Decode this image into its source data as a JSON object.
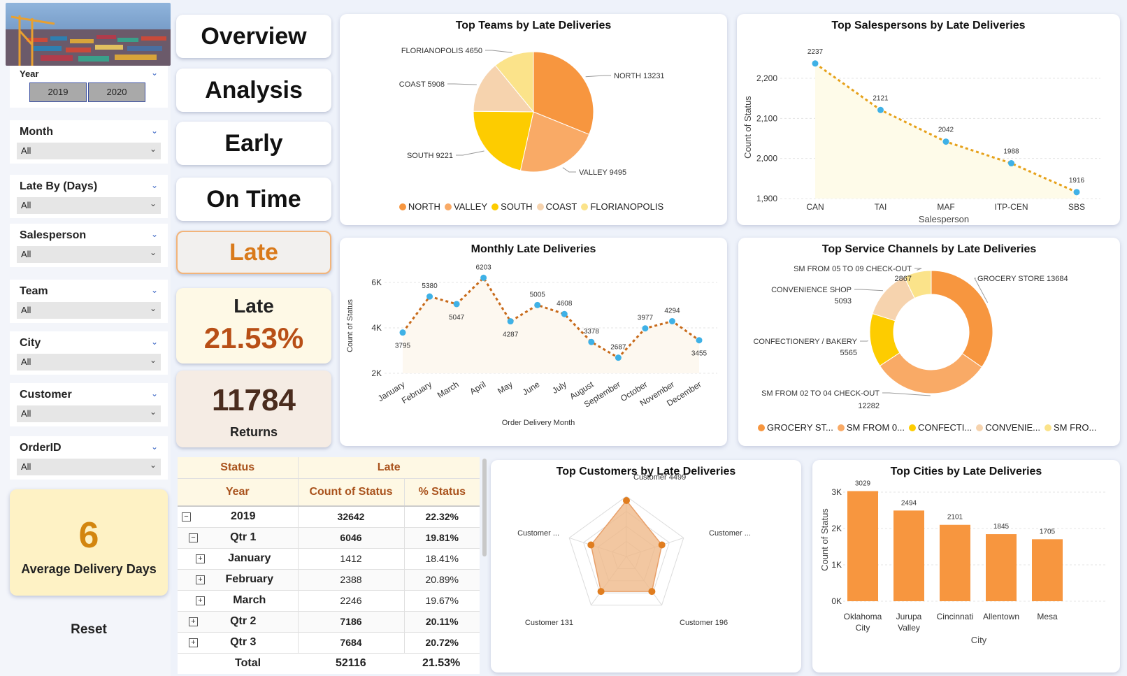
{
  "sidebar": {
    "year_slicer": {
      "title": "Year",
      "options": [
        "2019",
        "2020"
      ]
    },
    "slicers": [
      {
        "title": "Month",
        "value": "All"
      },
      {
        "title": "Late By (Days)",
        "value": "All"
      },
      {
        "title": "Salesperson",
        "value": "All"
      },
      {
        "title": "Team",
        "value": "All"
      },
      {
        "title": "City",
        "value": "All"
      },
      {
        "title": "Customer",
        "value": "All"
      },
      {
        "title": "OrderID",
        "value": "All"
      }
    ],
    "avg_card": {
      "value": "6",
      "label": "Average Delivery Days"
    },
    "reset_label": "Reset"
  },
  "nav": {
    "overview": "Overview",
    "analysis": "Analysis",
    "early": "Early",
    "on_time": "On Time",
    "late": "Late"
  },
  "kpi": {
    "late_label": "Late",
    "late_pct": "21.53%",
    "returns_value": "11784",
    "returns_label": "Returns"
  },
  "colors": {
    "orange": "#f7963f",
    "light_orange": "#f9aa66",
    "yellow": "#fdcc00",
    "peach": "#f6d3ae",
    "pale_yellow": "#fbe38a",
    "point_blue": "#3fb1e6",
    "title_brown": "#a9521c"
  },
  "charts": {
    "teams": {
      "title": "Top Teams by Late Deliveries",
      "slices": [
        {
          "label": "NORTH 13231",
          "legend": "NORTH",
          "value": 13231,
          "color": "#f7963f"
        },
        {
          "label": "VALLEY 9495",
          "legend": "VALLEY",
          "value": 9495,
          "color": "#f9aa66"
        },
        {
          "label": "SOUTH 9221",
          "legend": "SOUTH",
          "value": 9221,
          "color": "#fdcc00"
        },
        {
          "label": "COAST 5908",
          "legend": "COAST",
          "value": 5908,
          "color": "#f6d3ae"
        },
        {
          "label": "FLORIANOPOLIS 4650",
          "legend": "FLORIANOPOLIS",
          "value": 4650,
          "color": "#fbe38a"
        }
      ]
    },
    "salespersons": {
      "title": "Top Salespersons by Late Deliveries",
      "ylabel": "Count of Status",
      "xlabel": "Salesperson",
      "yticks": [
        "2,200",
        "2,100",
        "2,000",
        "1,900"
      ],
      "points": [
        {
          "x": "CAN",
          "y": 2237
        },
        {
          "x": "TAI",
          "y": 2121
        },
        {
          "x": "MAF",
          "y": 2042
        },
        {
          "x": "ITP-CEN",
          "y": 1988
        },
        {
          "x": "SBS",
          "y": 1916
        }
      ]
    },
    "monthly": {
      "title": "Monthly Late Deliveries",
      "ylabel": "Count of Status",
      "xlabel": "Order Delivery Month",
      "yticks": [
        "6K",
        "4K",
        "2K"
      ],
      "points": [
        {
          "x": "January",
          "y": 3795
        },
        {
          "x": "February",
          "y": 5380
        },
        {
          "x": "March",
          "y": 5047
        },
        {
          "x": "April",
          "y": 6203
        },
        {
          "x": "May",
          "y": 4287
        },
        {
          "x": "June",
          "y": 5005
        },
        {
          "x": "July",
          "y": 4608
        },
        {
          "x": "August",
          "y": 3378
        },
        {
          "x": "September",
          "y": 2687
        },
        {
          "x": "October",
          "y": 3977
        },
        {
          "x": "November",
          "y": 4294
        },
        {
          "x": "December",
          "y": 3455
        }
      ]
    },
    "channels": {
      "title": "Top Service Channels by Late Deliveries",
      "slices": [
        {
          "label1": "GROCERY STORE 13684",
          "label2": "",
          "legend": "GROCERY ST...",
          "value": 13684,
          "color": "#f7963f"
        },
        {
          "label1": "SM FROM 02 TO 04 CHECK-OUT",
          "label2": "12282",
          "legend": "SM FROM 0...",
          "value": 12282,
          "color": "#f9aa66"
        },
        {
          "label1": "CONFECTIONERY / BAKERY",
          "label2": "5565",
          "legend": "CONFECTI...",
          "value": 5565,
          "color": "#fdcc00"
        },
        {
          "label1": "CONVENIENCE SHOP",
          "label2": "5093",
          "legend": "CONVENIE...",
          "value": 5093,
          "color": "#f6d3ae"
        },
        {
          "label1": "SM FROM 05 TO 09 CHECK-OUT",
          "label2": "2867",
          "legend": "SM FRO...",
          "value": 2867,
          "color": "#fbe38a"
        }
      ]
    },
    "customers": {
      "title": "Top Customers by Late Deliveries",
      "axes": [
        "Customer 4499",
        "Customer ...",
        "Customer 196",
        "Customer 131",
        "Customer ..."
      ],
      "values": [
        0.93,
        0.62,
        0.72,
        0.72,
        0.62
      ]
    },
    "cities": {
      "title": "Top Cities by Late Deliveries",
      "ylabel": "Count of Status",
      "xlabel": "City",
      "yticks": [
        "3K",
        "2K",
        "1K",
        "0K"
      ],
      "bars": [
        {
          "x1": "Oklahoma",
          "x2": "City",
          "y": 3029
        },
        {
          "x1": "Jurupa",
          "x2": "Valley",
          "y": 2494
        },
        {
          "x1": "Cincinnati",
          "x2": "",
          "y": 2101
        },
        {
          "x1": "Allentown",
          "x2": "",
          "y": 1845
        },
        {
          "x1": "Mesa",
          "x2": "",
          "y": 1705
        }
      ]
    }
  },
  "matrix": {
    "header_status": "Status",
    "header_late": "Late",
    "col_year": "Year",
    "col_count": "Count of Status",
    "col_pct": "% Status",
    "rows": [
      {
        "label": "2019",
        "count": "32642",
        "pct": "22.32%",
        "sign": "−",
        "level": 0,
        "bold": true
      },
      {
        "label": "Qtr 1",
        "count": "6046",
        "pct": "19.81%",
        "sign": "−",
        "level": 1,
        "bold": true
      },
      {
        "label": "January",
        "count": "1412",
        "pct": "18.41%",
        "sign": "+",
        "level": 2,
        "bold": false
      },
      {
        "label": "February",
        "count": "2388",
        "pct": "20.89%",
        "sign": "+",
        "level": 2,
        "bold": false
      },
      {
        "label": "March",
        "count": "2246",
        "pct": "19.67%",
        "sign": "+",
        "level": 2,
        "bold": false
      },
      {
        "label": "Qtr 2",
        "count": "7186",
        "pct": "20.11%",
        "sign": "+",
        "level": 1,
        "bold": true
      },
      {
        "label": "Qtr 3",
        "count": "7684",
        "pct": "20.72%",
        "sign": "+",
        "level": 1,
        "bold": true
      }
    ],
    "total": {
      "label": "Total",
      "count": "52116",
      "pct": "21.53%"
    }
  }
}
